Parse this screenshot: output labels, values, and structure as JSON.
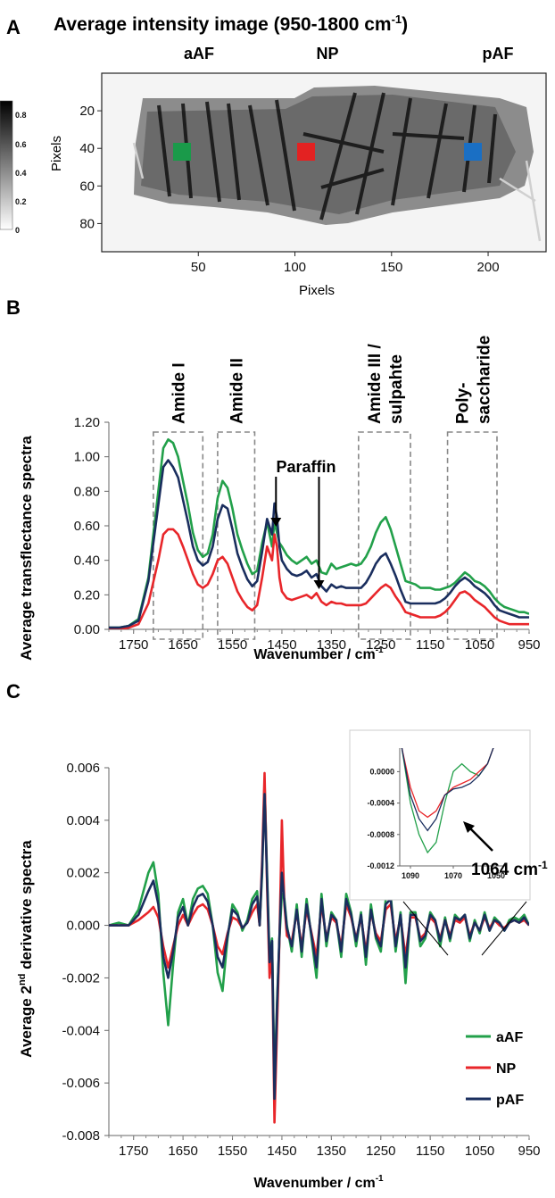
{
  "panels": {
    "a": {
      "letter": "A",
      "title_main": "Average intensity image (950-1800 cm",
      "title_sup": "-1",
      "title_end": ")",
      "region_labels": [
        "aAF",
        "NP",
        "pAF"
      ],
      "colorbar_ticks": [
        "0.8",
        "0.6",
        "0.4",
        "0.2",
        "0"
      ],
      "marker_colors": [
        "#1a9a4a",
        "#e32222",
        "#1a6fc4"
      ]
    },
    "b": {
      "letter": "B",
      "paraffin_label": "Paraffin",
      "xlabel_main": "Wavenumber / cm",
      "xlabel_sup": "-1"
    },
    "c": {
      "letter": "C",
      "ylabel_main": "Average 2",
      "ylabel_sup": "nd",
      "ylabel_end": " derivative spectra",
      "xlabel_main": "Wavenumber / cm",
      "xlabel_sup": "-1",
      "inset_annotation": "1064 cm",
      "inset_annotation_sup": "-1"
    }
  },
  "chart_data": [
    {
      "type": "heatmap",
      "title": "Average intensity image (950-1800 cm-1)",
      "xlabel": "Pixels",
      "ylabel": "Pixels",
      "xlim": [
        0,
        230
      ],
      "ylim": [
        95,
        0
      ],
      "xticks": [
        50,
        100,
        150,
        200
      ],
      "yticks": [
        20,
        40,
        60,
        80
      ],
      "colorbar_range": [
        0,
        0.85
      ],
      "regions": [
        {
          "name": "aAF",
          "x": 43,
          "y": 42,
          "color": "#1a9a4a"
        },
        {
          "name": "NP",
          "x": 106,
          "y": 42,
          "color": "#e32222"
        },
        {
          "name": "pAF",
          "x": 191,
          "y": 42,
          "color": "#1a6fc4"
        }
      ]
    },
    {
      "type": "line",
      "xlabel": "Wavenumber / cm-1",
      "ylabel": "Average transflectance spectra",
      "xlim": [
        1800,
        950
      ],
      "ylim": [
        0,
        1.2
      ],
      "xticks": [
        1750,
        1650,
        1550,
        1450,
        1350,
        1250,
        1150,
        1050,
        950
      ],
      "yticks": [
        "0.00",
        "0.20",
        "0.40",
        "0.60",
        "0.80",
        "1.00",
        "1.20"
      ],
      "bands": [
        {
          "label": "Amide I",
          "range": [
            1710,
            1610
          ]
        },
        {
          "label": "Amide II",
          "range": [
            1580,
            1505
          ]
        },
        {
          "label": "Amide III /\nsulpahte",
          "range": [
            1295,
            1190
          ]
        },
        {
          "label": "Poly-\nsaccharide",
          "range": [
            1115,
            1015
          ]
        }
      ],
      "arrows": [
        {
          "label": "Paraffin",
          "x": [
            1462,
            1375
          ]
        }
      ],
      "x": [
        1800,
        1780,
        1760,
        1740,
        1720,
        1700,
        1690,
        1680,
        1670,
        1660,
        1650,
        1640,
        1630,
        1620,
        1610,
        1600,
        1590,
        1580,
        1570,
        1560,
        1550,
        1540,
        1530,
        1520,
        1510,
        1500,
        1490,
        1480,
        1470,
        1465,
        1460,
        1455,
        1450,
        1440,
        1430,
        1420,
        1410,
        1400,
        1390,
        1380,
        1370,
        1360,
        1350,
        1340,
        1330,
        1320,
        1310,
        1300,
        1290,
        1280,
        1270,
        1260,
        1250,
        1240,
        1230,
        1220,
        1210,
        1200,
        1190,
        1180,
        1170,
        1160,
        1150,
        1140,
        1130,
        1120,
        1110,
        1100,
        1090,
        1080,
        1070,
        1060,
        1050,
        1040,
        1030,
        1020,
        1010,
        1000,
        990,
        980,
        970,
        960,
        950
      ],
      "series": [
        {
          "name": "aAF",
          "color": "#22a04a",
          "values": [
            0.01,
            0.01,
            0.02,
            0.06,
            0.3,
            0.8,
            1.05,
            1.1,
            1.08,
            1.0,
            0.86,
            0.72,
            0.56,
            0.46,
            0.42,
            0.44,
            0.55,
            0.76,
            0.86,
            0.82,
            0.7,
            0.55,
            0.46,
            0.38,
            0.32,
            0.34,
            0.5,
            0.62,
            0.48,
            0.62,
            0.56,
            0.5,
            0.48,
            0.43,
            0.4,
            0.38,
            0.4,
            0.42,
            0.38,
            0.4,
            0.33,
            0.32,
            0.38,
            0.35,
            0.36,
            0.37,
            0.38,
            0.37,
            0.38,
            0.42,
            0.48,
            0.56,
            0.62,
            0.65,
            0.58,
            0.48,
            0.38,
            0.28,
            0.27,
            0.26,
            0.24,
            0.24,
            0.24,
            0.23,
            0.23,
            0.24,
            0.25,
            0.27,
            0.3,
            0.33,
            0.31,
            0.28,
            0.27,
            0.25,
            0.22,
            0.18,
            0.15,
            0.13,
            0.12,
            0.11,
            0.1,
            0.1,
            0.09
          ]
        },
        {
          "name": "NP",
          "color": "#e8262a",
          "values": [
            0.0,
            0.0,
            0.01,
            0.03,
            0.15,
            0.4,
            0.55,
            0.58,
            0.58,
            0.55,
            0.48,
            0.4,
            0.32,
            0.26,
            0.24,
            0.26,
            0.32,
            0.4,
            0.42,
            0.38,
            0.3,
            0.22,
            0.17,
            0.13,
            0.11,
            0.14,
            0.3,
            0.48,
            0.4,
            0.55,
            0.48,
            0.3,
            0.22,
            0.18,
            0.17,
            0.18,
            0.19,
            0.2,
            0.18,
            0.21,
            0.16,
            0.14,
            0.16,
            0.15,
            0.15,
            0.14,
            0.14,
            0.14,
            0.14,
            0.15,
            0.18,
            0.21,
            0.24,
            0.26,
            0.24,
            0.19,
            0.15,
            0.1,
            0.09,
            0.08,
            0.07,
            0.07,
            0.07,
            0.07,
            0.08,
            0.1,
            0.13,
            0.17,
            0.21,
            0.22,
            0.2,
            0.17,
            0.15,
            0.13,
            0.1,
            0.07,
            0.05,
            0.04,
            0.03,
            0.03,
            0.03,
            0.03,
            0.03
          ]
        },
        {
          "name": "pAF",
          "color": "#1a2e5e",
          "values": [
            0.01,
            0.01,
            0.02,
            0.05,
            0.28,
            0.72,
            0.94,
            0.98,
            0.94,
            0.88,
            0.75,
            0.62,
            0.48,
            0.4,
            0.37,
            0.39,
            0.48,
            0.64,
            0.72,
            0.7,
            0.58,
            0.44,
            0.36,
            0.29,
            0.25,
            0.28,
            0.45,
            0.64,
            0.55,
            0.73,
            0.65,
            0.48,
            0.4,
            0.35,
            0.32,
            0.31,
            0.32,
            0.34,
            0.3,
            0.32,
            0.25,
            0.22,
            0.26,
            0.24,
            0.25,
            0.24,
            0.24,
            0.24,
            0.24,
            0.27,
            0.32,
            0.38,
            0.42,
            0.44,
            0.38,
            0.31,
            0.23,
            0.16,
            0.15,
            0.15,
            0.15,
            0.15,
            0.15,
            0.15,
            0.16,
            0.18,
            0.21,
            0.25,
            0.28,
            0.3,
            0.28,
            0.25,
            0.23,
            0.21,
            0.18,
            0.14,
            0.11,
            0.1,
            0.09,
            0.08,
            0.07,
            0.07,
            0.07
          ]
        }
      ]
    },
    {
      "type": "line",
      "xlabel": "Wavenumber / cm-1",
      "ylabel": "Average 2nd derivative spectra",
      "xlim": [
        1800,
        950
      ],
      "ylim": [
        -0.008,
        0.006
      ],
      "xticks": [
        1750,
        1650,
        1550,
        1450,
        1350,
        1250,
        1150,
        1050,
        950
      ],
      "yticks": [
        "-0.008",
        "-0.006",
        "-0.004",
        "-0.002",
        "0.000",
        "0.002",
        "0.004",
        "0.006"
      ],
      "legend_position": "bottom-right",
      "x": [
        1800,
        1780,
        1760,
        1740,
        1720,
        1710,
        1700,
        1690,
        1680,
        1670,
        1660,
        1650,
        1640,
        1630,
        1620,
        1610,
        1600,
        1590,
        1580,
        1570,
        1560,
        1550,
        1540,
        1530,
        1520,
        1510,
        1500,
        1495,
        1490,
        1485,
        1480,
        1475,
        1470,
        1465,
        1460,
        1455,
        1450,
        1445,
        1440,
        1430,
        1420,
        1410,
        1400,
        1390,
        1380,
        1370,
        1360,
        1350,
        1340,
        1330,
        1320,
        1310,
        1300,
        1290,
        1280,
        1270,
        1260,
        1250,
        1240,
        1230,
        1220,
        1210,
        1200,
        1190,
        1180,
        1170,
        1160,
        1150,
        1140,
        1130,
        1120,
        1110,
        1100,
        1090,
        1080,
        1070,
        1060,
        1050,
        1040,
        1030,
        1020,
        1010,
        1000,
        990,
        980,
        970,
        960,
        950
      ],
      "series": [
        {
          "name": "aAF",
          "color": "#22a04a",
          "values": [
            0.0,
            0.0001,
            0.0,
            0.0006,
            0.002,
            0.0024,
            0.0012,
            -0.0018,
            -0.0038,
            -0.0015,
            0.0005,
            0.001,
            0.0,
            0.001,
            0.0014,
            0.0015,
            0.0012,
            0.0,
            -0.0018,
            -0.0025,
            -0.0005,
            0.0008,
            0.0005,
            -0.0002,
            0.0002,
            0.001,
            0.0013,
            0.0,
            0.002,
            0.0055,
            0.002,
            -0.0012,
            -0.0005,
            -0.006,
            -0.003,
            -0.0005,
            0.0012,
            0.001,
            0.0,
            -0.001,
            0.0008,
            -0.0012,
            0.001,
            -0.0005,
            -0.002,
            0.0012,
            -0.0008,
            0.0005,
            0.0002,
            -0.0012,
            0.0012,
            0.0005,
            -0.0008,
            0.0005,
            -0.0015,
            0.0008,
            -0.0005,
            -0.001,
            0.001,
            0.0012,
            -0.001,
            0.0005,
            -0.0022,
            0.0005,
            0.0005,
            -0.0008,
            -0.0005,
            0.0005,
            0.0002,
            -0.0008,
            0.0003,
            -0.0006,
            0.0004,
            0.0002,
            0.0004,
            -0.0006,
            0.0002,
            -0.0003,
            0.0005,
            -0.0002,
            0.0003,
            0.0001,
            -0.0002,
            0.0002,
            0.0003,
            0.0002,
            0.0004,
            0.0
          ]
        },
        {
          "name": "NP",
          "color": "#e8262a",
          "values": [
            0.0,
            0.0,
            0.0,
            0.0002,
            0.0005,
            0.0007,
            0.0003,
            -0.0008,
            -0.0016,
            -0.0008,
            0.0,
            0.0004,
            0.0,
            0.0004,
            0.0007,
            0.0008,
            0.0006,
            0.0,
            -0.0008,
            -0.0011,
            -0.0003,
            0.0003,
            0.0002,
            -0.0001,
            0.0001,
            0.0005,
            0.0008,
            0.0,
            0.0025,
            0.0058,
            0.0015,
            -0.002,
            -0.001,
            -0.0075,
            -0.004,
            -0.0005,
            0.004,
            0.0008,
            -0.0004,
            -0.0006,
            0.0005,
            -0.0008,
            0.0006,
            -0.0003,
            -0.0012,
            0.0008,
            -0.0005,
            0.0003,
            0.0001,
            -0.0008,
            0.0008,
            0.0003,
            -0.0005,
            0.0003,
            -0.001,
            0.0005,
            -0.0003,
            -0.0006,
            0.0006,
            0.0008,
            -0.0006,
            0.0003,
            -0.0012,
            0.0003,
            0.0003,
            -0.0005,
            -0.0003,
            0.0003,
            0.0001,
            -0.0005,
            0.0002,
            -0.0004,
            0.0002,
            0.0001,
            0.0003,
            -0.0004,
            0.0001,
            -0.0002,
            0.0003,
            -0.0001,
            0.0002,
            0.0,
            -0.0001,
            0.0001,
            0.0002,
            0.0001,
            0.0002,
            0.0
          ]
        },
        {
          "name": "pAF",
          "color": "#1a2e5e",
          "values": [
            0.0,
            0.0,
            0.0,
            0.0004,
            0.0013,
            0.0017,
            0.0008,
            -0.0012,
            -0.002,
            -0.001,
            0.0003,
            0.0007,
            0.0,
            0.0007,
            0.0011,
            0.0012,
            0.0009,
            0.0,
            -0.0012,
            -0.0016,
            -0.0004,
            0.0006,
            0.0004,
            -0.0001,
            0.0001,
            0.0008,
            0.0011,
            0.0,
            0.0022,
            0.005,
            0.0018,
            -0.0014,
            -0.0006,
            -0.0066,
            -0.0032,
            -0.0004,
            0.002,
            0.0009,
            -0.0001,
            -0.0008,
            0.0006,
            -0.001,
            0.0008,
            -0.0004,
            -0.0016,
            0.001,
            -0.0006,
            0.0004,
            0.0002,
            -0.001,
            0.001,
            0.0004,
            -0.0006,
            0.0004,
            -0.0012,
            0.0006,
            -0.0004,
            -0.0008,
            0.0008,
            0.001,
            -0.0008,
            0.0004,
            -0.0016,
            0.0004,
            0.0004,
            -0.0006,
            -0.0004,
            0.0004,
            0.0002,
            -0.0006,
            0.0002,
            -0.0005,
            0.0003,
            0.0002,
            0.0004,
            -0.0005,
            0.0001,
            -0.0002,
            0.0004,
            -0.0002,
            0.0002,
            0.0001,
            -0.0002,
            0.0001,
            0.0002,
            0.0001,
            0.0003,
            0.0
          ]
        }
      ],
      "inset": {
        "xlim": [
          1095,
          1045
        ],
        "ylim": [
          -0.0012,
          0.0003
        ],
        "xticks": [
          1090,
          1070,
          1050
        ],
        "yticks": [
          "0.0000",
          "-0.0004",
          "-0.0008",
          "-0.0012"
        ],
        "x": [
          1094,
          1090,
          1086,
          1082,
          1078,
          1074,
          1070,
          1066,
          1062,
          1058,
          1054,
          1050
        ],
        "series": [
          {
            "name": "aAF",
            "color": "#22a04a",
            "values": [
              0.0003,
              -0.0004,
              -0.0008,
              -0.00103,
              -0.0009,
              -0.0004,
              0.0,
              0.0001,
              0.0,
              -5e-05,
              0.0001,
              0.0004
            ]
          },
          {
            "name": "NP",
            "color": "#e8262a",
            "values": [
              0.0003,
              -0.0002,
              -0.0005,
              -0.00058,
              -0.0005,
              -0.0003,
              -0.0002,
              -0.00015,
              -0.0001,
              0.0,
              0.0001,
              0.0004
            ]
          },
          {
            "name": "pAF",
            "color": "#1a2e5e",
            "values": [
              0.0003,
              -0.0003,
              -0.0006,
              -0.00075,
              -0.0006,
              -0.0003,
              -0.00022,
              -0.0002,
              -0.00015,
              -5e-05,
              0.0001,
              0.0004
            ]
          }
        ]
      }
    }
  ]
}
